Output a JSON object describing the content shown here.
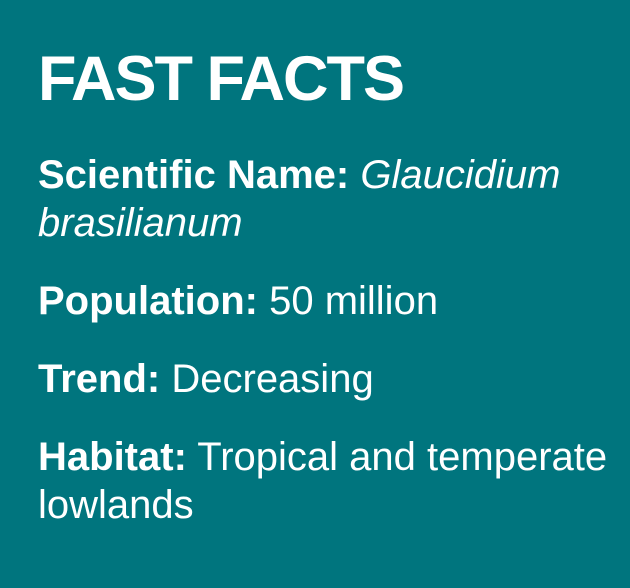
{
  "card": {
    "title": "FAST FACTS",
    "facts": [
      {
        "label": "Scientific Name:",
        "value": "Glaucidium brasilianum"
      },
      {
        "label": "Population:",
        "value": "50 million"
      },
      {
        "label": "Trend:",
        "value": "Decreasing"
      },
      {
        "label": "Habitat:",
        "value": "Tropical and temperate lowlands"
      }
    ],
    "colors": {
      "background": "#00757E",
      "text": "#FFFFFF"
    }
  }
}
